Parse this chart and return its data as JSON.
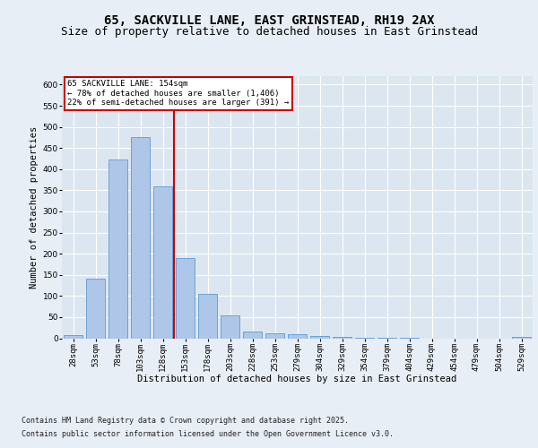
{
  "title_line1": "65, SACKVILLE LANE, EAST GRINSTEAD, RH19 2AX",
  "title_line2": "Size of property relative to detached houses in East Grinstead",
  "xlabel": "Distribution of detached houses by size in East Grinstead",
  "ylabel": "Number of detached properties",
  "categories": [
    "28sqm",
    "53sqm",
    "78sqm",
    "103sqm",
    "128sqm",
    "153sqm",
    "178sqm",
    "203sqm",
    "228sqm",
    "253sqm",
    "279sqm",
    "304sqm",
    "329sqm",
    "354sqm",
    "379sqm",
    "404sqm",
    "429sqm",
    "454sqm",
    "479sqm",
    "504sqm",
    "529sqm"
  ],
  "values": [
    8,
    142,
    422,
    475,
    360,
    190,
    105,
    55,
    15,
    12,
    10,
    5,
    3,
    2,
    1,
    1,
    0,
    0,
    0,
    0,
    3
  ],
  "bar_color": "#aec6e8",
  "bar_edge_color": "#5b9bd5",
  "vline_index": 4.5,
  "marker_label": "65 SACKVILLE LANE: 154sqm",
  "annotation_line1": "← 78% of detached houses are smaller (1,406)",
  "annotation_line2": "22% of semi-detached houses are larger (391) →",
  "vline_color": "#cc0000",
  "annotation_edge_color": "#cc0000",
  "ylim": [
    0,
    620
  ],
  "yticks": [
    0,
    50,
    100,
    150,
    200,
    250,
    300,
    350,
    400,
    450,
    500,
    550,
    600
  ],
  "bg_color": "#e8eef5",
  "plot_bg_color": "#dce6f0",
  "footer_line1": "Contains HM Land Registry data © Crown copyright and database right 2025.",
  "footer_line2": "Contains public sector information licensed under the Open Government Licence v3.0.",
  "title_fontsize": 10,
  "subtitle_fontsize": 9,
  "axis_label_fontsize": 7.5,
  "tick_fontsize": 6.5,
  "annot_fontsize": 6.5,
  "footer_fontsize": 6
}
